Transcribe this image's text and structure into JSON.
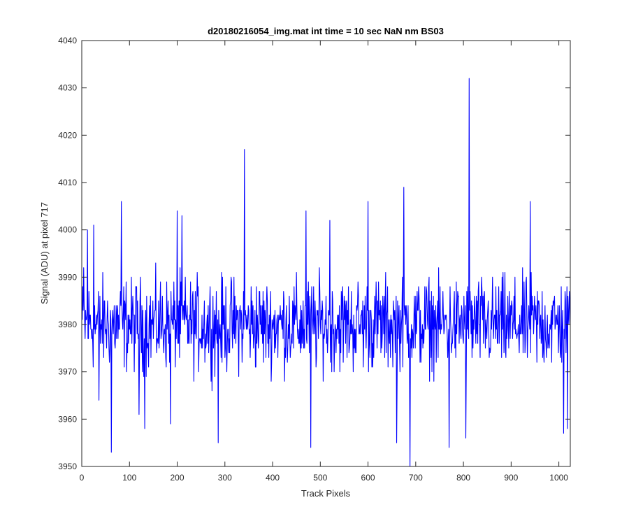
{
  "chart_data": {
    "type": "line",
    "title": "d20180216054_img.mat int time = 10 sec  NaN nm BS03",
    "xlabel": "Track Pixels",
    "ylabel": "Signal (ADU) at pixel 717",
    "xlim": [
      0,
      1024
    ],
    "ylim": [
      3950,
      4040
    ],
    "xticks": [
      0,
      100,
      200,
      300,
      400,
      500,
      600,
      700,
      800,
      900,
      1000
    ],
    "yticks": [
      3950,
      3960,
      3970,
      3980,
      3990,
      4000,
      4010,
      4020,
      4030,
      4040
    ],
    "grid": false,
    "legend": "none",
    "series": [
      {
        "color": "#0000ff",
        "x_start": 1,
        "x_step": 1,
        "mean": 3980,
        "noise_amplitude": 9,
        "length": 1024,
        "peaks": [
          {
            "x": 4,
            "y": 3992
          },
          {
            "x": 12,
            "y": 4000
          },
          {
            "x": 25,
            "y": 4001
          },
          {
            "x": 36,
            "y": 3964
          },
          {
            "x": 62,
            "y": 3953
          },
          {
            "x": 83,
            "y": 4006
          },
          {
            "x": 120,
            "y": 3961
          },
          {
            "x": 132,
            "y": 3958
          },
          {
            "x": 186,
            "y": 3959
          },
          {
            "x": 200,
            "y": 4004
          },
          {
            "x": 210,
            "y": 4003
          },
          {
            "x": 286,
            "y": 3955
          },
          {
            "x": 341,
            "y": 4017
          },
          {
            "x": 470,
            "y": 4004
          },
          {
            "x": 480,
            "y": 3954
          },
          {
            "x": 520,
            "y": 4002
          },
          {
            "x": 600,
            "y": 4006
          },
          {
            "x": 660,
            "y": 3955
          },
          {
            "x": 675,
            "y": 4009
          },
          {
            "x": 688,
            "y": 3950
          },
          {
            "x": 770,
            "y": 3954
          },
          {
            "x": 805,
            "y": 3956
          },
          {
            "x": 812,
            "y": 4032
          },
          {
            "x": 940,
            "y": 4006
          },
          {
            "x": 1010,
            "y": 3957
          },
          {
            "x": 1018,
            "y": 3958
          }
        ]
      }
    ]
  }
}
